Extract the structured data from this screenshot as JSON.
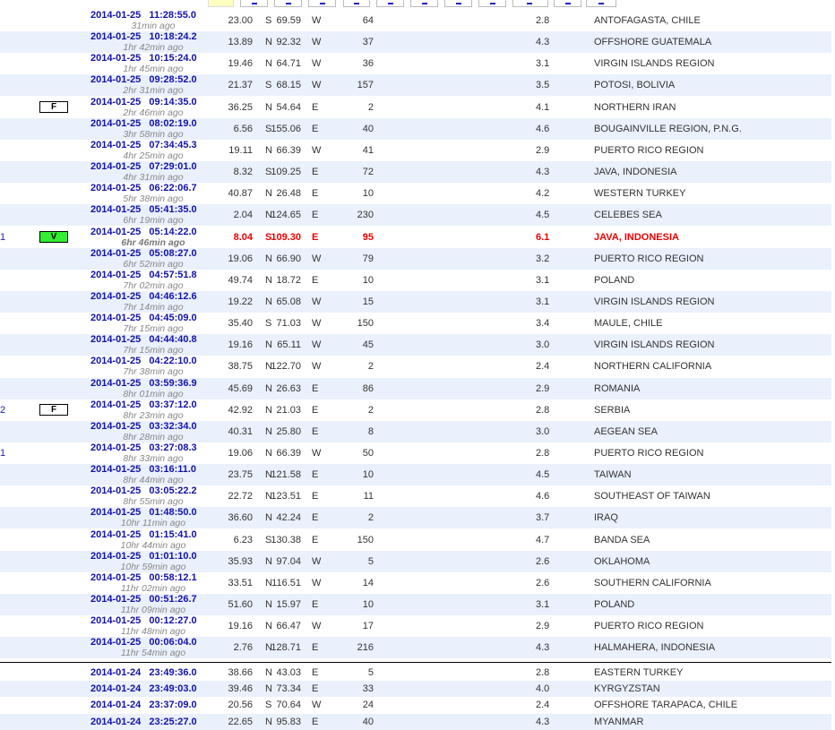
{
  "header_buttons": [
    "",
    "",
    "",
    "",
    "",
    "",
    "",
    "",
    "",
    "",
    "",
    ""
  ],
  "rows": [
    {
      "date": "2014-01-25   11:28:55.0",
      "ago": "31min ago",
      "lat": "23.00",
      "ns": "S",
      "lon": "69.59",
      "ew": "W",
      "depth": "64",
      "mag": "2.8",
      "region": "ANTOFAGASTA, CHILE"
    },
    {
      "date": "2014-01-25   10:18:24.2",
      "ago": "1hr 42min ago",
      "lat": "13.89",
      "ns": "N",
      "lon": "92.32",
      "ew": "W",
      "depth": "37",
      "mag": "4.3",
      "region": "OFFSHORE GUATEMALA"
    },
    {
      "date": "2014-01-25   10:15:24.0",
      "ago": "1hr 45min ago",
      "lat": "19.46",
      "ns": "N",
      "lon": "64.71",
      "ew": "W",
      "depth": "36",
      "mag": "3.1",
      "region": "VIRGIN ISLANDS REGION"
    },
    {
      "date": "2014-01-25   09:28:52.0",
      "ago": "2hr 31min ago",
      "lat": "21.37",
      "ns": "S",
      "lon": "68.15",
      "ew": "W",
      "depth": "157",
      "mag": "3.5",
      "region": "POTOSI, BOLIVIA"
    },
    {
      "badge": "F",
      "date": "2014-01-25   09:14:35.0",
      "ago": "2hr 46min ago",
      "lat": "36.25",
      "ns": "N",
      "lon": "54.64",
      "ew": "E",
      "depth": "2",
      "mag": "4.1",
      "region": "NORTHERN IRAN"
    },
    {
      "date": "2014-01-25   08:02:19.0",
      "ago": "3hr 58min ago",
      "lat": "6.56",
      "ns": "S",
      "lon": "155.06",
      "ew": "E",
      "depth": "40",
      "mag": "4.6",
      "region": "BOUGAINVILLE REGION, P.N.G."
    },
    {
      "date": "2014-01-25   07:34:45.3",
      "ago": "4hr 25min ago",
      "lat": "19.11",
      "ns": "N",
      "lon": "66.39",
      "ew": "W",
      "depth": "41",
      "mag": "2.9",
      "region": "PUERTO RICO REGION"
    },
    {
      "date": "2014-01-25   07:29:01.0",
      "ago": "4hr 31min ago",
      "lat": "8.32",
      "ns": "S",
      "lon": "109.25",
      "ew": "E",
      "depth": "72",
      "mag": "4.3",
      "region": "JAVA, INDONESIA"
    },
    {
      "date": "2014-01-25   06:22:06.7",
      "ago": "5hr 38min ago",
      "lat": "40.87",
      "ns": "N",
      "lon": "26.48",
      "ew": "E",
      "depth": "10",
      "mag": "4.2",
      "region": "WESTERN TURKEY"
    },
    {
      "date": "2014-01-25   05:41:35.0",
      "ago": "6hr 19min ago",
      "lat": "2.04",
      "ns": "N",
      "lon": "124.65",
      "ew": "E",
      "depth": "230",
      "mag": "4.5",
      "region": "CELEBES SEA"
    },
    {
      "num": "1",
      "badge": "V",
      "highlight": true,
      "date": "2014-01-25   05:14:22.0",
      "ago": "6hr 46min ago",
      "lat": "8.04",
      "ns": "S",
      "lon": "109.30",
      "ew": "E",
      "depth": "95",
      "mag": "6.1",
      "region": "JAVA, INDONESIA"
    },
    {
      "date": "2014-01-25   05:08:27.0",
      "ago": "6hr 52min ago",
      "lat": "19.06",
      "ns": "N",
      "lon": "66.90",
      "ew": "W",
      "depth": "79",
      "mag": "3.2",
      "region": "PUERTO RICO REGION"
    },
    {
      "date": "2014-01-25   04:57:51.8",
      "ago": "7hr 02min ago",
      "lat": "49.74",
      "ns": "N",
      "lon": "18.72",
      "ew": "E",
      "depth": "10",
      "mag": "3.1",
      "region": "POLAND"
    },
    {
      "date": "2014-01-25   04:46:12.6",
      "ago": "7hr 14min ago",
      "lat": "19.22",
      "ns": "N",
      "lon": "65.08",
      "ew": "W",
      "depth": "15",
      "mag": "3.1",
      "region": "VIRGIN ISLANDS REGION"
    },
    {
      "date": "2014-01-25   04:45:09.0",
      "ago": "7hr 15min ago",
      "lat": "35.40",
      "ns": "S",
      "lon": "71.03",
      "ew": "W",
      "depth": "150",
      "mag": "3.4",
      "region": "MAULE, CHILE"
    },
    {
      "date": "2014-01-25   04:44:40.8",
      "ago": "7hr 15min ago",
      "lat": "19.16",
      "ns": "N",
      "lon": "65.11",
      "ew": "W",
      "depth": "45",
      "mag": "3.0",
      "region": "VIRGIN ISLANDS REGION"
    },
    {
      "date": "2014-01-25   04:22:10.0",
      "ago": "7hr 38min ago",
      "lat": "38.75",
      "ns": "N",
      "lon": "122.70",
      "ew": "W",
      "depth": "2",
      "mag": "2.4",
      "region": "NORTHERN CALIFORNIA"
    },
    {
      "date": "2014-01-25   03:59:36.9",
      "ago": "8hr 01min ago",
      "lat": "45.69",
      "ns": "N",
      "lon": "26.63",
      "ew": "E",
      "depth": "86",
      "mag": "2.9",
      "region": "ROMANIA"
    },
    {
      "num": "2",
      "badge": "F",
      "date": "2014-01-25   03:37:12.0",
      "ago": "8hr 23min ago",
      "lat": "42.92",
      "ns": "N",
      "lon": "21.03",
      "ew": "E",
      "depth": "2",
      "mag": "2.8",
      "region": "SERBIA"
    },
    {
      "date": "2014-01-25   03:32:34.0",
      "ago": "8hr 28min ago",
      "lat": "40.31",
      "ns": "N",
      "lon": "25.80",
      "ew": "E",
      "depth": "8",
      "mag": "3.0",
      "region": "AEGEAN SEA"
    },
    {
      "num": "1",
      "date": "2014-01-25   03:27:08.3",
      "ago": "8hr 33min ago",
      "lat": "19.06",
      "ns": "N",
      "lon": "66.39",
      "ew": "W",
      "depth": "50",
      "mag": "2.8",
      "region": "PUERTO RICO REGION"
    },
    {
      "date": "2014-01-25   03:16:11.0",
      "ago": "8hr 44min ago",
      "lat": "23.75",
      "ns": "N",
      "lon": "121.58",
      "ew": "E",
      "depth": "10",
      "mag": "4.5",
      "region": "TAIWAN"
    },
    {
      "date": "2014-01-25   03:05:22.2",
      "ago": "8hr 55min ago",
      "lat": "22.72",
      "ns": "N",
      "lon": "123.51",
      "ew": "E",
      "depth": "11",
      "mag": "4.6",
      "region": "SOUTHEAST OF TAIWAN"
    },
    {
      "date": "2014-01-25   01:48:50.0",
      "ago": "10hr 11min ago",
      "lat": "36.60",
      "ns": "N",
      "lon": "42.24",
      "ew": "E",
      "depth": "2",
      "mag": "3.7",
      "region": "IRAQ"
    },
    {
      "date": "2014-01-25   01:15:41.0",
      "ago": "10hr 44min ago",
      "lat": "6.23",
      "ns": "S",
      "lon": "130.38",
      "ew": "E",
      "depth": "150",
      "mag": "4.7",
      "region": "BANDA SEA"
    },
    {
      "date": "2014-01-25   01:01:10.0",
      "ago": "10hr 59min ago",
      "lat": "35.93",
      "ns": "N",
      "lon": "97.04",
      "ew": "W",
      "depth": "5",
      "mag": "2.6",
      "region": "OKLAHOMA"
    },
    {
      "date": "2014-01-25   00:58:12.1",
      "ago": "11hr 02min ago",
      "lat": "33.51",
      "ns": "N",
      "lon": "116.51",
      "ew": "W",
      "depth": "14",
      "mag": "2.6",
      "region": "SOUTHERN CALIFORNIA"
    },
    {
      "date": "2014-01-25   00:51:26.7",
      "ago": "11hr 09min ago",
      "lat": "51.60",
      "ns": "N",
      "lon": "15.97",
      "ew": "E",
      "depth": "10",
      "mag": "3.1",
      "region": "POLAND"
    },
    {
      "date": "2014-01-25   00:12:27.0",
      "ago": "11hr 48min ago",
      "lat": "19.16",
      "ns": "N",
      "lon": "66.47",
      "ew": "W",
      "depth": "17",
      "mag": "2.9",
      "region": "PUERTO RICO REGION"
    },
    {
      "date": "2014-01-25   00:06:04.0",
      "ago": "11hr 54min ago",
      "lat": "2.76",
      "ns": "N",
      "lon": "128.71",
      "ew": "E",
      "depth": "216",
      "mag": "4.3",
      "region": "HALMAHERA, INDONESIA"
    }
  ],
  "prev_day_rows": [
    {
      "date": "2014-01-24   23:49:36.0",
      "lat": "38.66",
      "ns": "N",
      "lon": "43.03",
      "ew": "E",
      "depth": "5",
      "mag": "2.8",
      "region": "EASTERN TURKEY"
    },
    {
      "date": "2014-01-24   23:49:03.0",
      "lat": "39.46",
      "ns": "N",
      "lon": "73.34",
      "ew": "E",
      "depth": "33",
      "mag": "4.0",
      "region": "KYRGYZSTAN"
    },
    {
      "date": "2014-01-24   23:37:09.0",
      "lat": "20.56",
      "ns": "S",
      "lon": "70.64",
      "ew": "W",
      "depth": "24",
      "mag": "2.4",
      "region": "OFFSHORE TARAPACA, CHILE"
    },
    {
      "date": "2014-01-24   23:25:27.0",
      "lat": "22.65",
      "ns": "N",
      "lon": "95.83",
      "ew": "E",
      "depth": "40",
      "mag": "4.3",
      "region": "MYANMAR"
    }
  ],
  "colors": {
    "stripe": "#eaf0fc",
    "highlight": "#ee0000",
    "date": "#1212aa",
    "badge_v": "#33ee33"
  }
}
